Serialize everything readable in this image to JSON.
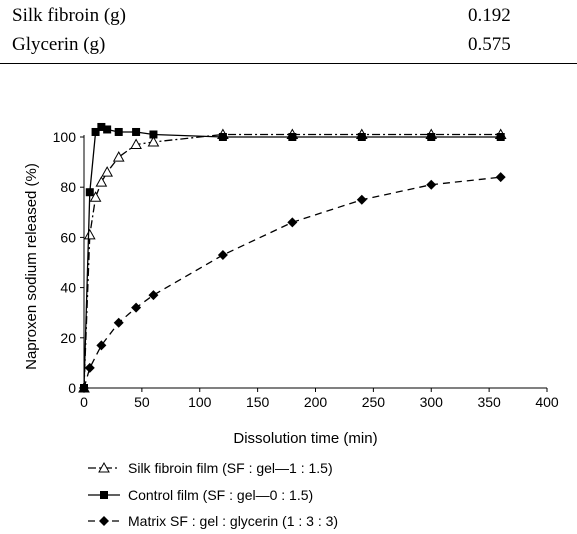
{
  "table": {
    "rows": [
      {
        "label": "Silk fibroin (g)",
        "value": "0.192"
      },
      {
        "label": "Glycerin (g)",
        "value": "0.575"
      }
    ]
  },
  "chart_data": {
    "type": "line",
    "title": "",
    "xlabel": "Dissolution time (min)",
    "ylabel": "Naproxen sodium released (%)",
    "xlim": [
      0,
      400
    ],
    "ylim": [
      0,
      100
    ],
    "xticks": [
      0,
      50,
      100,
      150,
      200,
      250,
      300,
      350,
      400
    ],
    "yticks": [
      0,
      20,
      40,
      60,
      80,
      100
    ],
    "grid": false,
    "legend_position": "bottom",
    "series": [
      {
        "name": "Silk fibroin film (SF : gel—1 : 1.5)",
        "marker": "open-triangle",
        "line_style": "dash-dot",
        "color": "#000000",
        "x": [
          0,
          5,
          10,
          15,
          20,
          30,
          45,
          60,
          120,
          180,
          240,
          300,
          360
        ],
        "y": [
          0,
          61,
          76,
          82,
          86,
          92,
          97,
          98,
          101,
          101,
          101,
          101,
          101
        ]
      },
      {
        "name": "Control film (SF : gel—0 : 1.5)",
        "marker": "filled-square",
        "line_style": "solid",
        "color": "#000000",
        "x": [
          0,
          5,
          10,
          15,
          20,
          30,
          45,
          60,
          120,
          180,
          240,
          300,
          360
        ],
        "y": [
          0,
          78,
          102,
          104,
          103,
          102,
          102,
          101,
          100,
          100,
          100,
          100,
          100
        ]
      },
      {
        "name": "Matrix SF : gel : glycerin (1 : 3 : 3)",
        "marker": "filled-diamond",
        "line_style": "dashed",
        "color": "#000000",
        "x": [
          0,
          5,
          15,
          30,
          45,
          60,
          120,
          180,
          240,
          300,
          360
        ],
        "y": [
          0,
          8,
          17,
          26,
          32,
          37,
          53,
          66,
          75,
          81,
          84
        ]
      }
    ]
  }
}
